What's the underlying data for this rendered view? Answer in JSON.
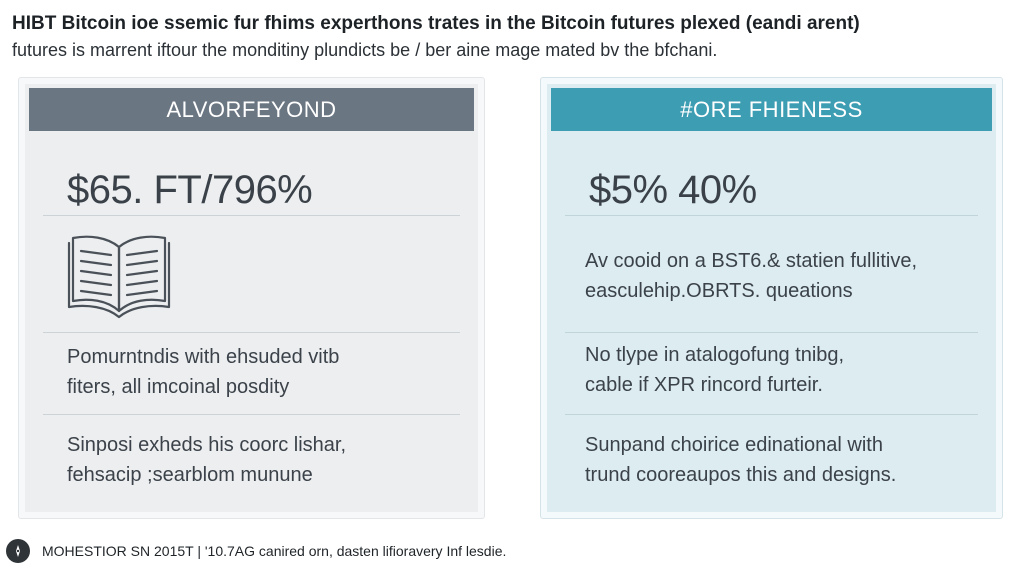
{
  "header": {
    "title": "HIBT Bitcoin ioe ssemic fur fhims experthons trates in the Bitcoin futures plexed (eandi arent)",
    "subtitle": "futures is marrent iftour the monditiny plundicts be / ber aine mage mated bv the bfchani."
  },
  "left_panel": {
    "header": "ALVORFEYOND",
    "stat": "$65. FT/796%",
    "icon": "open-book-icon",
    "text1": [
      "Pomurntndis with ehsuded vitb",
      "fiters, all imcoinal posdity"
    ],
    "text2": [
      "Sinposi exheds his coorc lishar,",
      "fehsacip ;searblom munune"
    ]
  },
  "right_panel": {
    "header": "#ORE FHIENESS",
    "stat": "$5% 40%",
    "text1": [
      "Av cooid on a BST6.& statien fullitive,",
      "easculehip.OBRTS. queations"
    ],
    "text2": [
      "No tlype in atalogofung tnibg,",
      "cable if XPR rincord furteir."
    ],
    "text3": [
      "Sunpand choirice edinational with",
      "trund cooreaupos this and designs."
    ]
  },
  "footer": {
    "icon": "compass-icon",
    "text": "MOHESTIOR SN 2015T | '10.7AG canired orn, dasten lifioravery Inf lesdie."
  },
  "colors": {
    "left_header": "#6b7683",
    "right_header": "#3d9db3",
    "left_panel_bg": "#eceef0",
    "right_panel_bg": "#dcecf1"
  }
}
